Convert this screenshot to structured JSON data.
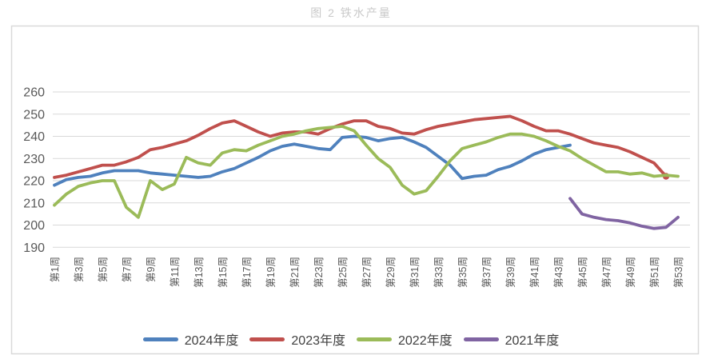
{
  "title": "图 2 铁水产量",
  "chart_data": {
    "type": "line",
    "title": "图 2 铁水产量",
    "x_axis": {
      "unit": "周",
      "weeks_range": [
        1,
        53
      ],
      "tick_labels": [
        "第1周",
        "第3周",
        "第5周",
        "第7周",
        "第9周",
        "第11周",
        "第13周",
        "第15周",
        "第17周",
        "第19周",
        "第21周",
        "第23周",
        "第25周",
        "第27周",
        "第29周",
        "第31周",
        "第33周",
        "第35周",
        "第37周",
        "第39周",
        "第41周",
        "第43周",
        "第45周",
        "第47周",
        "第49周",
        "第51周",
        "第53周"
      ]
    },
    "y_axis": {
      "ticks": [
        260,
        250,
        240,
        230,
        220,
        210,
        200,
        190
      ],
      "ylim": [
        190,
        260
      ]
    },
    "grid": "horizontal",
    "legend_position": "bottom-center",
    "series": [
      {
        "name": "2024年度",
        "color": "#4F81BD",
        "start_week": 1,
        "end_marker": false,
        "values": [
          218,
          220.5,
          221.5,
          222,
          223.5,
          224.5,
          224.5,
          224.5,
          223.5,
          223,
          222.5,
          222,
          221.5,
          222,
          224,
          225.5,
          228,
          230.5,
          233.5,
          235.5,
          236.5,
          235.5,
          234.5,
          234,
          239.5,
          240,
          239.5,
          238,
          239,
          239.5,
          237.5,
          235,
          231,
          227,
          221,
          222,
          222.5,
          225,
          226.5,
          229,
          232,
          234,
          235,
          236
        ]
      },
      {
        "name": "2023年度",
        "color": "#C0504D",
        "start_week": 1,
        "end_marker": true,
        "values": [
          221.5,
          222.5,
          224,
          225.5,
          227,
          227,
          228.5,
          230.5,
          234,
          235,
          236.5,
          238,
          240.5,
          243.5,
          246,
          247,
          244.5,
          242,
          240,
          241.5,
          242,
          242,
          241,
          243.5,
          245.5,
          247,
          247,
          244.5,
          243.5,
          241.5,
          241,
          243,
          244.5,
          245.5,
          246.5,
          247.5,
          248,
          248.5,
          249,
          247,
          244.5,
          242.5,
          242.5,
          241,
          239,
          237,
          236,
          235,
          233,
          230.5,
          228,
          222
        ]
      },
      {
        "name": "2022年度",
        "color": "#9BBB59",
        "start_week": 1,
        "end_marker": false,
        "values": [
          209,
          214,
          217.5,
          219,
          220,
          220,
          208,
          203.5,
          220,
          216,
          218.5,
          230.5,
          228,
          227,
          232.5,
          234,
          233.5,
          236,
          238,
          240,
          241,
          242.5,
          243.5,
          244,
          244.5,
          242.5,
          236,
          230,
          226,
          218,
          214,
          215.5,
          222,
          229,
          234.5,
          236,
          237.5,
          239.5,
          241,
          241,
          240,
          238,
          235.5,
          233.5,
          230,
          227,
          224,
          224,
          223,
          223.5,
          222,
          222.5,
          222
        ]
      },
      {
        "name": "2021年度",
        "color": "#8064A2",
        "start_week": 44,
        "end_marker": false,
        "values": [
          212,
          205,
          203.5,
          202.5,
          202,
          201,
          199.5,
          198.5,
          199,
          203.5
        ]
      }
    ],
    "colors": {
      "grid": "#d9d9d9",
      "panel_border": "#d9d9d9",
      "tick_text": "#595959",
      "title_text": "#c9c9c9"
    }
  },
  "legend": {
    "items": [
      {
        "label": "2024年度"
      },
      {
        "label": "2023年度"
      },
      {
        "label": "2022年度"
      },
      {
        "label": "2021年度"
      }
    ]
  }
}
